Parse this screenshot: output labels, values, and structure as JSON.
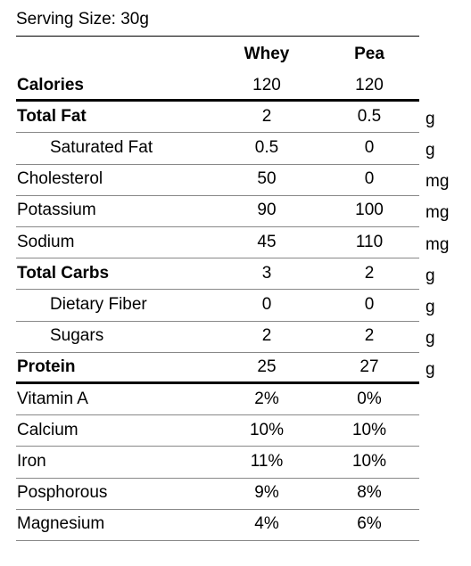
{
  "header": {
    "serving_size": "Serving Size: 30g"
  },
  "table": {
    "columns": [
      "Whey",
      "Pea"
    ],
    "rows": [
      {
        "label": "Calories",
        "values": [
          "120",
          "120"
        ],
        "bold": true,
        "thick_rule_below": true
      },
      {
        "label": "Total Fat",
        "values": [
          "2",
          "0.5"
        ],
        "unit": "g",
        "bold": true
      },
      {
        "label": "Saturated Fat",
        "values": [
          "0.5",
          "0"
        ],
        "unit": "g",
        "indent": true
      },
      {
        "label": "Cholesterol",
        "values": [
          "50",
          "0"
        ],
        "unit": "mg"
      },
      {
        "label": "Potassium",
        "values": [
          "90",
          "100"
        ],
        "unit": "mg"
      },
      {
        "label": "Sodium",
        "values": [
          "45",
          "110"
        ],
        "unit": "mg"
      },
      {
        "label": "Total Carbs",
        "values": [
          "3",
          "2"
        ],
        "unit": "g",
        "bold": true
      },
      {
        "label": "Dietary Fiber",
        "values": [
          "0",
          "0"
        ],
        "unit": "g",
        "indent": true
      },
      {
        "label": "Sugars",
        "values": [
          "2",
          "2"
        ],
        "unit": "g",
        "indent": true
      },
      {
        "label": "Protein",
        "values": [
          "25",
          "27"
        ],
        "unit": "g",
        "bold": true,
        "thick_rule_below": true
      },
      {
        "label": "Vitamin A",
        "values": [
          "2%",
          "0%"
        ]
      },
      {
        "label": "Calcium",
        "values": [
          "10%",
          "10%"
        ]
      },
      {
        "label": "Iron",
        "values": [
          "11%",
          "10%"
        ]
      },
      {
        "label": "Posphorous",
        "values": [
          "9%",
          "8%"
        ]
      },
      {
        "label": "Magnesium",
        "values": [
          "4%",
          "6%"
        ]
      }
    ]
  }
}
